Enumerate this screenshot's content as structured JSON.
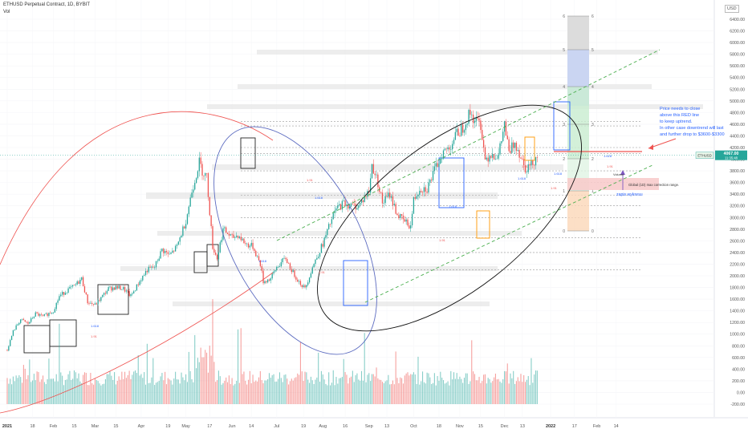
{
  "header": {
    "symbol_line": "ETHUSD Perpetual Contract, 1D, BYBIT",
    "indicator": "Vol",
    "currency": "USD"
  },
  "colors": {
    "up": "#26a69a",
    "down": "#ef5350",
    "red_line": "#ef5350",
    "green_channel": "#4caf50",
    "blue_ellipse": "#5c6bc0",
    "annotation_blue": "#2962ff",
    "price_tag": "#26a69a"
  },
  "chart_data": {
    "type": "candlestick",
    "x_ticks": [
      "2021",
      "18",
      "Feb",
      "15",
      "Mar",
      "15",
      "Apr",
      "19",
      "May",
      "17",
      "Jun",
      "14",
      "Jul",
      "19",
      "Aug",
      "16",
      "Sep",
      "13",
      "Oct",
      "18",
      "Nov",
      "15",
      "Dec",
      "13",
      "2022",
      "17",
      "Feb",
      "14"
    ],
    "y_ticks": [
      6400,
      6200,
      6000,
      5800,
      5600,
      5400,
      5200,
      5000,
      4800,
      4600,
      4400,
      4200,
      4000,
      3800,
      3600,
      3400,
      3200,
      3000,
      2800,
      2600,
      2400,
      2200,
      2000,
      1800,
      1600,
      1400,
      1200,
      1000,
      800,
      600,
      400,
      200,
      0,
      -200
    ],
    "ylim": [
      -200,
      6500
    ],
    "last_price": "4067.00",
    "price_tag_symbol": "ETHUSD",
    "price_tag_time": "11:35:48",
    "close_points": [
      [
        "2021-01-01",
        730
      ],
      [
        "2021-01-05",
        1050
      ],
      [
        "2021-01-10",
        1250
      ],
      [
        "2021-01-15",
        1180
      ],
      [
        "2021-01-20",
        1350
      ],
      [
        "2021-01-25",
        1300
      ],
      [
        "2021-02-01",
        1400
      ],
      [
        "2021-02-05",
        1650
      ],
      [
        "2021-02-10",
        1750
      ],
      [
        "2021-02-15",
        1820
      ],
      [
        "2021-02-20",
        1950
      ],
      [
        "2021-02-24",
        1550
      ],
      [
        "2021-03-01",
        1500
      ],
      [
        "2021-03-05",
        1620
      ],
      [
        "2021-03-10",
        1780
      ],
      [
        "2021-03-15",
        1800
      ],
      [
        "2021-03-20",
        1780
      ],
      [
        "2021-03-25",
        1650
      ],
      [
        "2021-04-01",
        1950
      ],
      [
        "2021-04-05",
        2100
      ],
      [
        "2021-04-10",
        2150
      ],
      [
        "2021-04-15",
        2450
      ],
      [
        "2021-04-20",
        2350
      ],
      [
        "2021-04-25",
        2500
      ],
      [
        "2021-05-01",
        2950
      ],
      [
        "2021-05-05",
        3450
      ],
      [
        "2021-05-10",
        3950
      ],
      [
        "2021-05-12",
        3800
      ],
      [
        "2021-05-15",
        3700
      ],
      [
        "2021-05-19",
        2500
      ],
      [
        "2021-05-22",
        2300
      ],
      [
        "2021-05-26",
        2800
      ],
      [
        "2021-06-01",
        2650
      ],
      [
        "2021-06-05",
        2700
      ],
      [
        "2021-06-10",
        2550
      ],
      [
        "2021-06-15",
        2500
      ],
      [
        "2021-06-20",
        2200
      ],
      [
        "2021-06-22",
        1900
      ],
      [
        "2021-06-27",
        1950
      ],
      [
        "2021-07-01",
        2150
      ],
      [
        "2021-07-07",
        2300
      ],
      [
        "2021-07-12",
        2050
      ],
      [
        "2021-07-16",
        1900
      ],
      [
        "2021-07-20",
        1780
      ],
      [
        "2021-07-25",
        2150
      ],
      [
        "2021-08-01",
        2550
      ],
      [
        "2021-08-06",
        2900
      ],
      [
        "2021-08-10",
        3150
      ],
      [
        "2021-08-15",
        3250
      ],
      [
        "2021-08-20",
        3200
      ],
      [
        "2021-08-25",
        3200
      ],
      [
        "2021-09-01",
        3450
      ],
      [
        "2021-09-03",
        3900
      ],
      [
        "2021-09-07",
        3600
      ],
      [
        "2021-09-10",
        3250
      ],
      [
        "2021-09-15",
        3400
      ],
      [
        "2021-09-20",
        3050
      ],
      [
        "2021-09-24",
        2950
      ],
      [
        "2021-09-29",
        2850
      ],
      [
        "2021-10-01",
        3300
      ],
      [
        "2021-10-05",
        3500
      ],
      [
        "2021-10-10",
        3500
      ],
      [
        "2021-10-15",
        3800
      ],
      [
        "2021-10-20",
        4100
      ],
      [
        "2021-10-25",
        4200
      ],
      [
        "2021-10-29",
        4400
      ],
      [
        "2021-11-03",
        4550
      ],
      [
        "2021-11-08",
        4800
      ],
      [
        "2021-11-10",
        4700
      ],
      [
        "2021-11-15",
        4600
      ],
      [
        "2021-11-18",
        4000
      ],
      [
        "2021-11-22",
        4100
      ],
      [
        "2021-11-27",
        4050
      ],
      [
        "2021-12-01",
        4600
      ],
      [
        "2021-12-04",
        4100
      ],
      [
        "2021-12-08",
        4300
      ],
      [
        "2021-12-12",
        4050
      ],
      [
        "2021-12-15",
        3850
      ],
      [
        "2021-12-19",
        3900
      ],
      [
        "2021-12-23",
        4067
      ]
    ],
    "volume_note": "volume histogram along the bottom",
    "horizontal_levels": [
      4650,
      4570,
      4200,
      4100,
      3800,
      3600,
      3380,
      3200,
      3000,
      2650,
      2400,
      2100
    ],
    "fib_column_labels": [
      "6",
      "5",
      "4",
      "3",
      "2",
      "1",
      "0"
    ],
    "fib_labels_blue": [
      "1.618",
      "1.618",
      "1.618",
      "1.618",
      "1.618",
      "1.618",
      "1.618"
    ],
    "fib_labels_red": [
      "1.91",
      "1.91",
      "1.91",
      "1.91",
      "1.91",
      "1.91",
      "1.91"
    ],
    "annotations": {
      "main_note": [
        "Price needs to close",
        "above this RED line",
        "to keep uptrend.",
        "In other case downtrend will last",
        "and further drop to $3600-$3300"
      ],
      "correction_box": "Global (1D) max correction range.",
      "save_note": "zapis wykresu",
      "small_label": "Volume"
    }
  }
}
